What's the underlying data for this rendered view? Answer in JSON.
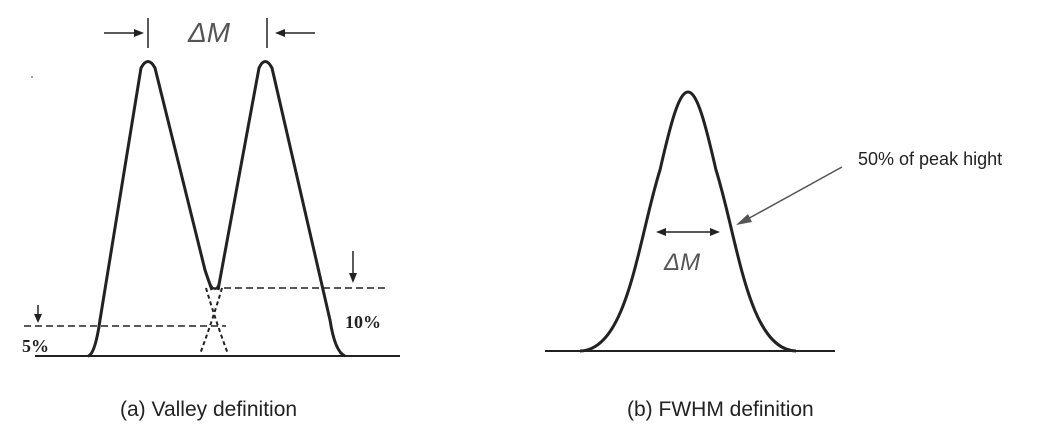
{
  "panel_a": {
    "delta_label": "ΔM",
    "label_5": "5%",
    "label_10": "10%",
    "caption_prefix": "(a)",
    "caption_text": "Valley definition"
  },
  "panel_b": {
    "delta_label": "ΔM",
    "annotation": "50% of peak hight",
    "caption_prefix": "(b)",
    "caption_text": "FWHM definition"
  },
  "colors": {
    "ink": "#222222",
    "label_gray": "#555555"
  }
}
